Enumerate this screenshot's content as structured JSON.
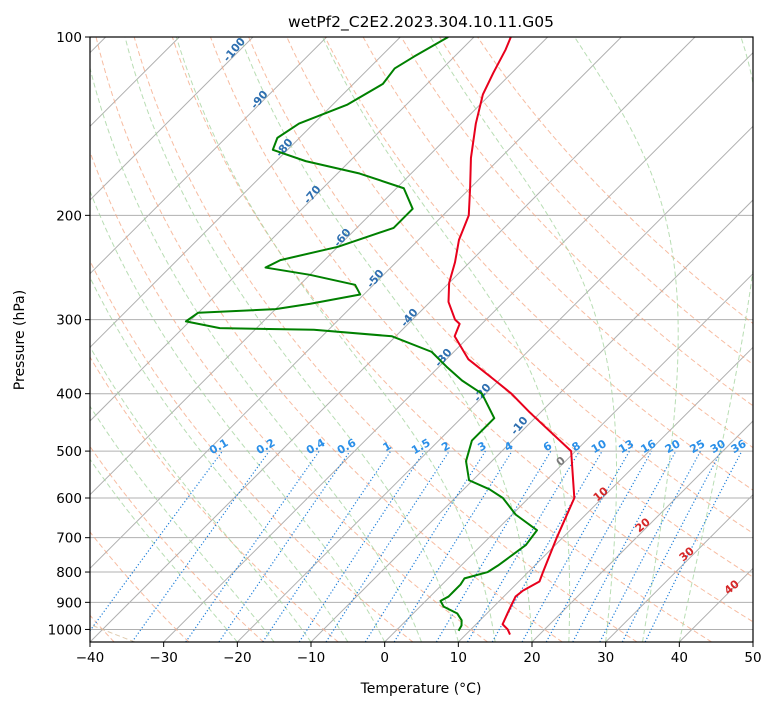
{
  "chart_data": {
    "type": "line",
    "title": "wetPf2_C2E2.2023.304.10.11.G05",
    "xlabel": "Temperature (°C)",
    "ylabel": "Pressure (hPa)",
    "xlim": [
      -40,
      50
    ],
    "ylim": [
      1050,
      100
    ],
    "y_scale": "log",
    "skew": true,
    "grid": true,
    "x_ticks": [
      -40,
      -30,
      -20,
      -10,
      0,
      10,
      20,
      30,
      40,
      50
    ],
    "y_ticks": [
      1000,
      900,
      800,
      700,
      600,
      500,
      400,
      300,
      200,
      100
    ],
    "series": [
      {
        "role": "temperature",
        "color": "#e8001c",
        "points": [
          [
            1020,
            16.0
          ],
          [
            1000,
            15.0
          ],
          [
            980,
            13.6
          ],
          [
            940,
            12.8
          ],
          [
            910,
            12.2
          ],
          [
            880,
            11.6
          ],
          [
            860,
            11.8
          ],
          [
            830,
            12.8
          ],
          [
            800,
            12.0
          ],
          [
            700,
            9.2
          ],
          [
            600,
            6.2
          ],
          [
            500,
            -0.6
          ],
          [
            430,
            -11.5
          ],
          [
            400,
            -16.5
          ],
          [
            380,
            -20.5
          ],
          [
            350,
            -27.0
          ],
          [
            320,
            -32.0
          ],
          [
            305,
            -33.0
          ],
          [
            300,
            -34.2
          ],
          [
            280,
            -37.5
          ],
          [
            260,
            -40.0
          ],
          [
            240,
            -42.0
          ],
          [
            220,
            -44.5
          ],
          [
            200,
            -46.5
          ],
          [
            180,
            -50.0
          ],
          [
            160,
            -54.0
          ],
          [
            140,
            -58.0
          ],
          [
            125,
            -61.0
          ],
          [
            115,
            -62.5
          ],
          [
            105,
            -64.0
          ],
          [
            100,
            -65.0
          ]
        ]
      },
      {
        "role": "dewpoint",
        "color": "#008000",
        "points": [
          [
            1005,
            8.5
          ],
          [
            985,
            8.2
          ],
          [
            965,
            7.5
          ],
          [
            940,
            6.0
          ],
          [
            915,
            3.2
          ],
          [
            895,
            2.0
          ],
          [
            880,
            2.5
          ],
          [
            860,
            2.5
          ],
          [
            840,
            2.5
          ],
          [
            820,
            2.2
          ],
          [
            800,
            4.5
          ],
          [
            780,
            5.0
          ],
          [
            750,
            5.5
          ],
          [
            720,
            6.0
          ],
          [
            680,
            5.5
          ],
          [
            640,
            0.5
          ],
          [
            600,
            -3.5
          ],
          [
            580,
            -6.5
          ],
          [
            560,
            -10.5
          ],
          [
            520,
            -13.5
          ],
          [
            480,
            -15.5
          ],
          [
            440,
            -15.5
          ],
          [
            400,
            -20.5
          ],
          [
            380,
            -25.0
          ],
          [
            360,
            -29.0
          ],
          [
            340,
            -33.0
          ],
          [
            320,
            -40.5
          ],
          [
            312,
            -52.0
          ],
          [
            310,
            -65.0
          ],
          [
            302,
            -70.5
          ],
          [
            292,
            -70.0
          ],
          [
            288,
            -60.0
          ],
          [
            282,
            -56.0
          ],
          [
            272,
            -50.5
          ],
          [
            262,
            -52.5
          ],
          [
            252,
            -60.0
          ],
          [
            245,
            -67.0
          ],
          [
            238,
            -66.0
          ],
          [
            226,
            -60.0
          ],
          [
            210,
            -55.0
          ],
          [
            195,
            -55.0
          ],
          [
            180,
            -59.0
          ],
          [
            170,
            -67.0
          ],
          [
            162,
            -76.0
          ],
          [
            155,
            -82.0
          ],
          [
            148,
            -83.0
          ],
          [
            140,
            -82.0
          ],
          [
            130,
            -78.0
          ],
          [
            120,
            -76.0
          ],
          [
            113,
            -76.5
          ],
          [
            108,
            -75.5
          ],
          [
            100,
            -73.5
          ]
        ]
      }
    ],
    "dry_adiabats_c": [
      -100,
      -90,
      -80,
      -70,
      -60,
      -50,
      -40,
      -30,
      -20,
      -10,
      0,
      10,
      20,
      30,
      40,
      50,
      60,
      70,
      80,
      90,
      100,
      110,
      120
    ],
    "moist_adiabats_c": [
      -20,
      -15,
      -10,
      -5,
      0,
      5,
      10,
      15,
      20,
      25,
      30,
      35,
      40
    ],
    "mixing_ratios_gkg": [
      0.1,
      0.2,
      0.4,
      0.6,
      1,
      1.5,
      2,
      3,
      4,
      6,
      8,
      10,
      13,
      16,
      20,
      25,
      30,
      36
    ],
    "mixing_ratio_labels": [
      "0.1",
      "0.2",
      "0.4",
      "0.6",
      "1",
      "1.5",
      "2",
      "3",
      "4",
      "6",
      "8",
      "10",
      "13",
      "16",
      "20",
      "25",
      "30",
      "36"
    ],
    "annotations": {
      "dry_adiabat_labels": [
        "-100",
        "-90",
        "-80",
        "-70",
        "-60",
        "-50",
        "-40",
        "-30",
        "-20",
        "-10"
      ],
      "moist_adiabat_labels": [
        "0",
        "10",
        "20",
        "30",
        "40"
      ]
    },
    "colors": {
      "isotherm": "#b0b0b0",
      "dry_adiabat": "#f4a582",
      "moist_adiabat": "#a6d5a0",
      "mixing_ratio": "#1f7fd9",
      "mixing_ratio_label": "#2a8fe8",
      "dry_label": "#2e6fb0",
      "moist_label_zero": "#7a7a7a",
      "moist_label": "#d62728",
      "brown_curve": "#d2b48c"
    }
  }
}
